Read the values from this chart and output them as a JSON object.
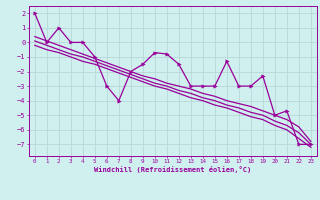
{
  "x_data": [
    0,
    1,
    2,
    3,
    4,
    5,
    6,
    7,
    8,
    9,
    10,
    11,
    12,
    13,
    14,
    15,
    16,
    17,
    18,
    19,
    20,
    21,
    22,
    23
  ],
  "y_main": [
    2,
    0,
    1,
    0,
    0,
    -1,
    -3,
    -4,
    -2,
    -1.5,
    -0.7,
    -0.8,
    -1.5,
    -3,
    -3,
    -3,
    -1.3,
    -3,
    -3,
    -2.3,
    -5,
    -4.7,
    -7,
    -7
  ],
  "trend_y1": [
    0.4,
    0.1,
    -0.2,
    -0.5,
    -0.8,
    -1.1,
    -1.4,
    -1.7,
    -2.0,
    -2.3,
    -2.5,
    -2.8,
    -3.0,
    -3.2,
    -3.5,
    -3.7,
    -4.0,
    -4.2,
    -4.4,
    -4.7,
    -5.0,
    -5.3,
    -5.8,
    -6.8
  ],
  "trend_y2": [
    0.1,
    -0.2,
    -0.5,
    -0.8,
    -1.0,
    -1.3,
    -1.6,
    -1.9,
    -2.2,
    -2.5,
    -2.8,
    -3.0,
    -3.3,
    -3.5,
    -3.8,
    -4.0,
    -4.3,
    -4.5,
    -4.8,
    -5.0,
    -5.4,
    -5.7,
    -6.2,
    -7.0
  ],
  "trend_y3": [
    -0.2,
    -0.5,
    -0.7,
    -1.0,
    -1.3,
    -1.5,
    -1.8,
    -2.1,
    -2.4,
    -2.7,
    -3.0,
    -3.2,
    -3.5,
    -3.8,
    -4.0,
    -4.3,
    -4.5,
    -4.8,
    -5.1,
    -5.3,
    -5.7,
    -6.0,
    -6.6,
    -7.2
  ],
  "color": "#990099",
  "bg_color": "#d0f0f0",
  "grid_color": "#b8d8d8",
  "xlabel": "Windchill (Refroidissement éolien,°C)",
  "ylim": [
    -7.8,
    2.5
  ],
  "xlim": [
    -0.5,
    23.5
  ],
  "yticks": [
    2,
    1,
    0,
    -1,
    -2,
    -3,
    -4,
    -5,
    -6,
    -7
  ],
  "xticks": [
    0,
    1,
    2,
    3,
    4,
    5,
    6,
    7,
    8,
    9,
    10,
    11,
    12,
    13,
    14,
    15,
    16,
    17,
    18,
    19,
    20,
    21,
    22,
    23
  ]
}
